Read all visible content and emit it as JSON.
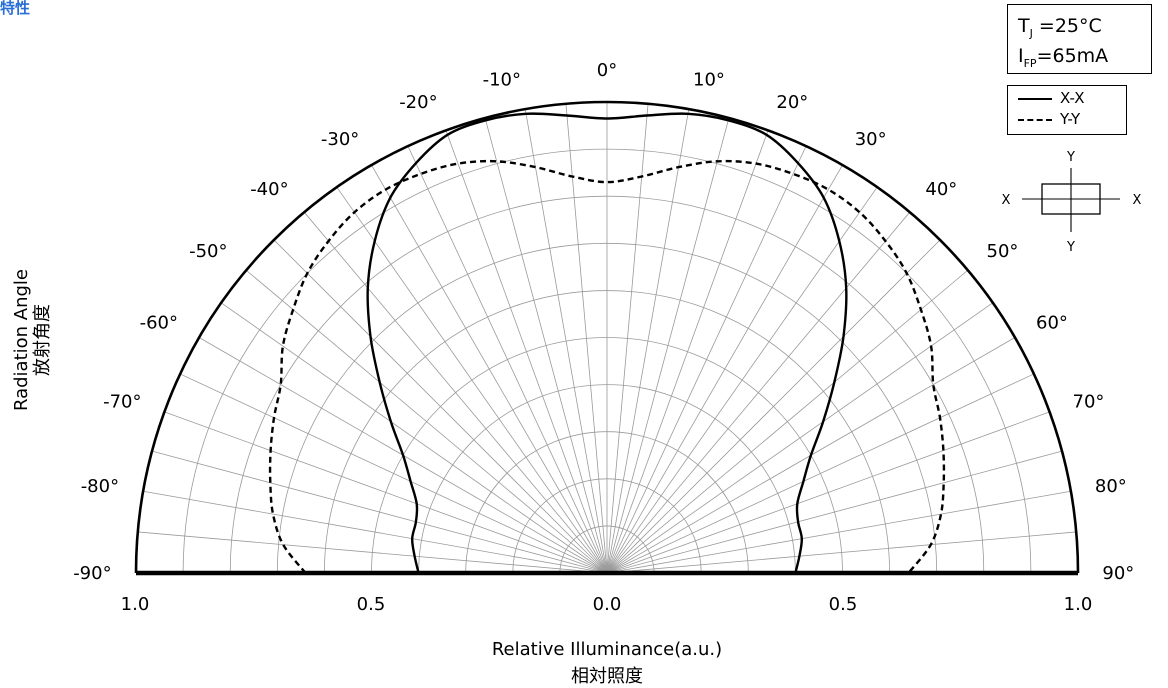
{
  "header": {
    "title": "特性"
  },
  "conditions": {
    "tj_label": "T",
    "tj_sub": "J",
    "tj_value": "=25°C",
    "ifp_label": "I",
    "ifp_sub": "FP",
    "ifp_value": "=65mA"
  },
  "legend": {
    "series": [
      {
        "name": "X-X",
        "style": "solid"
      },
      {
        "name": "Y-Y",
        "style": "dashed"
      }
    ]
  },
  "orientation_diagram": {
    "top": "Y",
    "bottom": "Y",
    "left": "X",
    "right": "X"
  },
  "chart_data": {
    "type": "polar",
    "angle_labels_left": [
      "-90°",
      "-80°",
      "-70°",
      "-60°",
      "-50°",
      "-40°",
      "-30°",
      "-20°",
      "-10°"
    ],
    "angle_label_center": "0°",
    "angle_labels_right": [
      "10°",
      "20°",
      "30°",
      "40°",
      "50°",
      "60°",
      "70°",
      "80°",
      "90°"
    ],
    "x_ticks": [
      "1.0",
      "0.5",
      "0.0",
      "0.5",
      "1.0"
    ],
    "xlabel": "Relative Illuminance(a.u.)",
    "xlabel_jp": "相対照度",
    "ylabel": "Radiation Angle",
    "ylabel_jp": "放射角度",
    "r_range": [
      0,
      1.0
    ],
    "angle_range_deg": [
      -90,
      90
    ],
    "grid": true,
    "series": [
      {
        "name": "X-X",
        "style": "solid",
        "angles_deg": [
          0,
          5,
          10,
          15,
          20,
          25,
          30,
          35,
          40,
          45,
          50,
          55,
          60,
          65,
          70,
          75,
          80,
          85,
          90
        ],
        "values": [
          0.965,
          0.975,
          0.99,
          0.995,
          0.99,
          0.96,
          0.92,
          0.86,
          0.79,
          0.71,
          0.63,
          0.56,
          0.5,
          0.46,
          0.43,
          0.42,
          0.42,
          0.41,
          0.4
        ]
      },
      {
        "name": "Y-Y",
        "style": "dashed",
        "angles_deg": [
          0,
          5,
          10,
          15,
          20,
          25,
          30,
          35,
          40,
          45,
          50,
          55,
          60,
          65,
          70,
          75,
          80,
          85,
          90
        ],
        "values": [
          0.83,
          0.845,
          0.875,
          0.905,
          0.925,
          0.935,
          0.94,
          0.935,
          0.92,
          0.9,
          0.87,
          0.84,
          0.8,
          0.78,
          0.76,
          0.74,
          0.72,
          0.69,
          0.64
        ]
      }
    ]
  }
}
